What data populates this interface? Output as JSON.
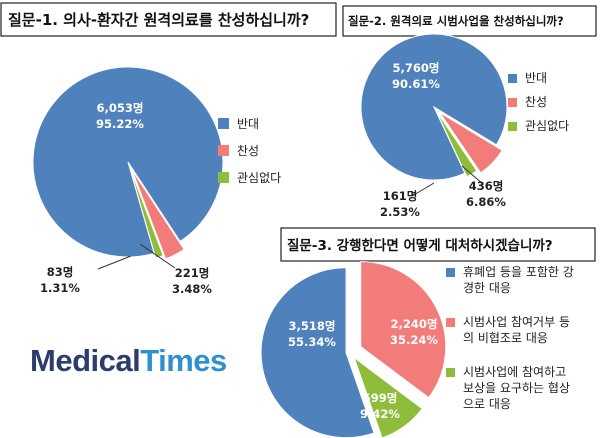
{
  "colors": {
    "blue": "#4f81bd",
    "red": "#f27c7a",
    "green": "#8ebd3c",
    "logo_navy": "#2c3d6b",
    "logo_blue": "#2f8fd0"
  },
  "logo": {
    "part1": "Medical",
    "part2": "Times"
  },
  "chart_data": [
    {
      "type": "pie",
      "title": "질문-1. 의사-환자간 원격의료를 찬성하십니까?",
      "legend_position": "right",
      "slices": [
        {
          "name": "반대",
          "count_label": "6,053명",
          "percent_label": "95.22%",
          "value": 95.22,
          "color": "#4f81bd"
        },
        {
          "name": "찬성",
          "count_label": "221명",
          "percent_label": "3.48%",
          "value": 3.48,
          "color": "#f27c7a"
        },
        {
          "name": "관심없다",
          "count_label": "83명",
          "percent_label": "1.31%",
          "value": 1.31,
          "color": "#8ebd3c"
        }
      ]
    },
    {
      "type": "pie",
      "title": "질문-2. 원격의료 시범사업을 찬성하십니까?",
      "legend_position": "right",
      "slices": [
        {
          "name": "반대",
          "count_label": "5,760명",
          "percent_label": "90.61%",
          "value": 90.61,
          "color": "#4f81bd"
        },
        {
          "name": "찬성",
          "count_label": "436명",
          "percent_label": "6.86%",
          "value": 6.86,
          "color": "#f27c7a"
        },
        {
          "name": "관심없다",
          "count_label": "161명",
          "percent_label": "2.53%",
          "value": 2.53,
          "color": "#8ebd3c"
        }
      ]
    },
    {
      "type": "pie",
      "title": "질문-3. 강행한다면 어떻게 대처하시겠습니까?",
      "legend_position": "right",
      "slices": [
        {
          "name": "휴폐업 등을 포함한 강경한 대응",
          "legend_lines": [
            "휴폐업 등을 포함한 강",
            "경한 대응"
          ],
          "count_label": "3,518명",
          "percent_label": "55.34%",
          "value": 55.34,
          "color": "#4f81bd"
        },
        {
          "name": "시범사업 참여거부 등의 비협조로 대응",
          "legend_lines": [
            "시범사업 참여거부 등",
            "의 비협조로 대응"
          ],
          "count_label": "2,240명",
          "percent_label": "35.24%",
          "value": 35.24,
          "color": "#f27c7a"
        },
        {
          "name": "시범사업에 참여하고 보상을 요구하는 협상으로 대응",
          "legend_lines": [
            "시범사업에 참여하고",
            "보상을 요구하는 협상",
            "으로 대응"
          ],
          "count_label": "599명",
          "percent_label": "9.42%",
          "value": 9.42,
          "color": "#8ebd3c"
        }
      ]
    }
  ]
}
